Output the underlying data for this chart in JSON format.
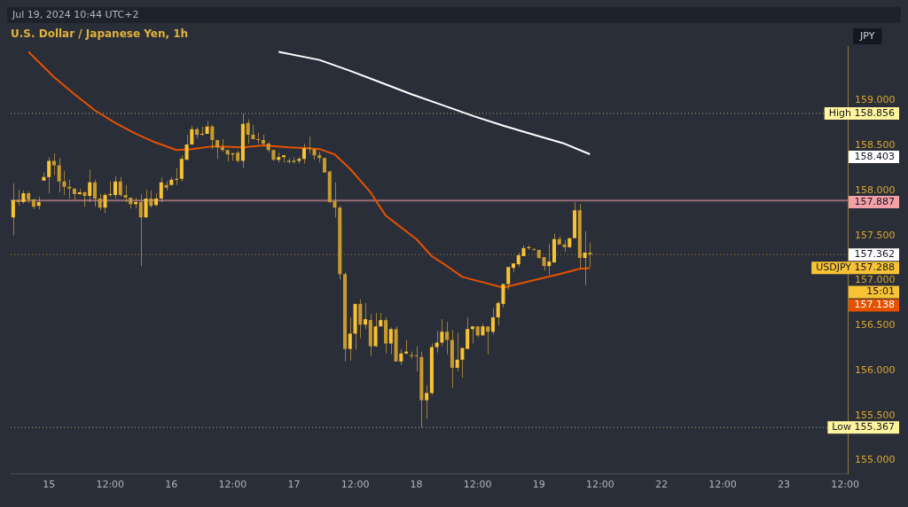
{
  "chart_data": {
    "type": "candlestick",
    "title": "U.S. Dollar / Japanese Yen, 1h",
    "ylabel": "JPY",
    "color": "#f7c234",
    "annotations": [
      "Jul 19, 2024 10:44 UTC+2",
      "158.403",
      "157.362",
      "15:01",
      "157.138"
    ],
    "categories": [
      null,
      null,
      null,
      null,
      null,
      null,
      null,
      "15",
      null,
      null,
      null,
      null,
      null,
      null,
      null,
      null,
      null,
      null,
      null,
      "12:00",
      null,
      null,
      null,
      null,
      null,
      null,
      null,
      null,
      null,
      null,
      null,
      "16",
      null,
      null,
      null,
      null,
      null,
      null,
      null,
      null,
      null,
      null,
      null,
      "12:00",
      null,
      null,
      null,
      null,
      null,
      null,
      null,
      null,
      null,
      null,
      null,
      "17",
      null,
      null,
      null,
      null,
      null,
      null,
      null,
      null,
      null,
      null,
      null,
      "12:00",
      null,
      null,
      null,
      null,
      null,
      null,
      null,
      null,
      null,
      null,
      null,
      "18",
      null,
      null,
      null,
      null,
      null,
      null,
      null,
      null,
      null,
      null,
      null,
      "12:00",
      null,
      null,
      null,
      null,
      null,
      null,
      null,
      null,
      null,
      null,
      null,
      "19",
      null,
      null,
      null,
      null,
      null,
      null,
      null,
      null,
      null,
      null,
      null,
      "12:00",
      null,
      null,
      null,
      null,
      null,
      null,
      null,
      null,
      null,
      null,
      null,
      "22",
      null,
      null,
      null,
      null,
      null,
      null,
      null,
      null,
      null,
      null,
      null,
      "12:00",
      null,
      null,
      null,
      null,
      null,
      null,
      null,
      null,
      null,
      null,
      null,
      "23",
      null,
      null,
      null,
      null,
      null,
      null,
      null,
      null,
      null,
      null,
      null,
      "12:00"
    ],
    "ohlc": [
      [
        157.7,
        158.08,
        157.5,
        157.89
      ],
      [
        157.89,
        158.01,
        157.83,
        157.87
      ],
      [
        157.87,
        158.0,
        157.85,
        157.97
      ],
      [
        157.97,
        157.99,
        157.86,
        157.9
      ],
      [
        157.9,
        157.91,
        157.79,
        157.82
      ],
      [
        157.83,
        157.93,
        157.79,
        157.87
      ],
      [
        158.11,
        158.2,
        158.11,
        158.15
      ],
      [
        158.15,
        158.37,
        157.97,
        158.33
      ],
      [
        158.33,
        158.41,
        158.17,
        158.28
      ],
      [
        158.28,
        158.36,
        157.98,
        158.1
      ],
      [
        158.1,
        158.22,
        157.95,
        158.04
      ],
      [
        158.04,
        158.12,
        157.91,
        158.02
      ],
      [
        158.02,
        158.02,
        157.9,
        157.96
      ],
      [
        157.96,
        158.02,
        157.95,
        157.98
      ],
      [
        157.98,
        157.99,
        157.82,
        157.94
      ],
      [
        157.94,
        158.23,
        157.87,
        158.09
      ],
      [
        158.09,
        158.12,
        157.82,
        157.91
      ],
      [
        157.91,
        157.96,
        157.78,
        157.81
      ],
      [
        157.81,
        157.97,
        157.75,
        157.95
      ],
      [
        157.95,
        158.1,
        157.93,
        157.95
      ],
      [
        157.95,
        158.16,
        157.91,
        158.1
      ],
      [
        158.1,
        158.15,
        157.93,
        157.95
      ],
      [
        157.95,
        158.06,
        157.87,
        157.92
      ],
      [
        157.92,
        157.92,
        157.8,
        157.85
      ],
      [
        157.85,
        157.92,
        157.8,
        157.87
      ],
      [
        157.87,
        157.96,
        157.16,
        157.7
      ],
      [
        157.7,
        158.01,
        157.7,
        157.91
      ],
      [
        157.91,
        158.0,
        157.81,
        157.83
      ],
      [
        157.84,
        157.97,
        157.82,
        157.91
      ],
      [
        157.91,
        158.15,
        157.87,
        158.09
      ],
      [
        158.06,
        158.1,
        158.0,
        158.03
      ],
      [
        158.06,
        158.15,
        158.06,
        158.12
      ],
      [
        158.12,
        158.25,
        158.06,
        158.13
      ],
      [
        158.13,
        158.39,
        158.1,
        158.35
      ],
      [
        158.34,
        158.62,
        158.34,
        158.51
      ],
      [
        158.51,
        158.72,
        158.51,
        158.68
      ],
      [
        158.68,
        158.7,
        158.58,
        158.62
      ],
      [
        158.62,
        158.71,
        158.61,
        158.63
      ],
      [
        158.63,
        158.77,
        158.63,
        158.71
      ],
      [
        158.71,
        158.73,
        158.46,
        158.56
      ],
      [
        158.56,
        158.56,
        158.35,
        158.48
      ],
      [
        158.48,
        158.57,
        158.43,
        158.45
      ],
      [
        158.45,
        158.45,
        158.32,
        158.4
      ],
      [
        158.4,
        158.42,
        158.33,
        158.41
      ],
      [
        158.42,
        158.44,
        158.31,
        158.33
      ],
      [
        158.33,
        158.856,
        158.25,
        158.74
      ],
      [
        158.75,
        158.79,
        158.52,
        158.62
      ],
      [
        158.62,
        158.73,
        158.57,
        158.57
      ],
      [
        158.57,
        158.64,
        158.52,
        158.56
      ],
      [
        158.56,
        158.62,
        158.5,
        158.52
      ],
      [
        158.52,
        158.54,
        158.42,
        158.45
      ],
      [
        158.45,
        158.45,
        158.33,
        158.34
      ],
      [
        158.34,
        158.42,
        158.31,
        158.37
      ],
      [
        158.37,
        158.39,
        158.31,
        158.39
      ],
      [
        158.32,
        158.36,
        158.3,
        158.33
      ],
      [
        158.32,
        158.37,
        158.3,
        158.33
      ],
      [
        158.33,
        158.37,
        158.3,
        158.35
      ],
      [
        158.35,
        158.52,
        158.3,
        158.47
      ],
      [
        158.47,
        158.6,
        158.41,
        158.46
      ],
      [
        158.46,
        158.46,
        158.34,
        158.39
      ],
      [
        158.39,
        158.43,
        158.31,
        158.36
      ],
      [
        158.36,
        158.36,
        158.2,
        158.2
      ],
      [
        158.21,
        158.22,
        157.86,
        157.87
      ],
      [
        157.88,
        158.09,
        157.7,
        157.81
      ],
      [
        157.81,
        157.83,
        157.01,
        157.07
      ],
      [
        157.07,
        157.09,
        156.1,
        156.24
      ],
      [
        156.24,
        156.59,
        156.11,
        156.41
      ],
      [
        156.41,
        156.74,
        156.23,
        156.74
      ],
      [
        156.74,
        156.79,
        156.36,
        156.51
      ],
      [
        156.51,
        156.75,
        156.46,
        156.57
      ],
      [
        156.56,
        156.63,
        156.16,
        156.27
      ],
      [
        156.27,
        156.64,
        156.26,
        156.49
      ],
      [
        156.49,
        156.64,
        156.49,
        156.56
      ],
      [
        156.56,
        156.59,
        156.19,
        156.3
      ],
      [
        156.3,
        156.48,
        156.18,
        156.46
      ],
      [
        156.46,
        156.49,
        156.1,
        156.1
      ],
      [
        156.1,
        156.24,
        156.06,
        156.19
      ],
      [
        156.19,
        156.34,
        156.18,
        156.21
      ],
      [
        156.17,
        156.21,
        156.13,
        156.16
      ],
      [
        156.17,
        156.27,
        155.99,
        156.16
      ],
      [
        156.15,
        156.21,
        155.367,
        155.67
      ],
      [
        155.67,
        155.84,
        155.46,
        155.75
      ],
      [
        155.75,
        156.3,
        155.73,
        156.26
      ],
      [
        156.26,
        156.44,
        156.2,
        156.31
      ],
      [
        156.31,
        156.57,
        156.27,
        156.43
      ],
      [
        156.43,
        156.54,
        156.18,
        156.34
      ],
      [
        156.34,
        156.45,
        155.81,
        156.03
      ],
      [
        156.03,
        156.42,
        155.99,
        156.12
      ],
      [
        156.12,
        156.25,
        155.92,
        156.25
      ],
      [
        156.24,
        156.59,
        156.24,
        156.46
      ],
      [
        156.46,
        156.49,
        156.3,
        156.49
      ],
      [
        156.49,
        156.49,
        156.37,
        156.39
      ],
      [
        156.39,
        156.52,
        156.39,
        156.49
      ],
      [
        156.49,
        156.49,
        156.18,
        156.43
      ],
      [
        156.43,
        156.69,
        156.4,
        156.59
      ],
      [
        156.59,
        156.77,
        156.5,
        156.75
      ],
      [
        156.74,
        156.96,
        156.7,
        156.96
      ],
      [
        156.96,
        157.15,
        156.9,
        157.15
      ],
      [
        157.14,
        157.19,
        157.09,
        157.19
      ],
      [
        157.18,
        157.31,
        157.15,
        157.28
      ],
      [
        157.27,
        157.39,
        157.27,
        157.36
      ],
      [
        157.36,
        157.39,
        157.34,
        157.37
      ],
      [
        157.35,
        157.36,
        157.33,
        157.34
      ],
      [
        157.34,
        157.34,
        157.24,
        157.25
      ],
      [
        157.26,
        157.26,
        157.11,
        157.16
      ],
      [
        157.16,
        157.41,
        157.06,
        157.21
      ],
      [
        157.2,
        157.52,
        157.2,
        157.46
      ],
      [
        157.46,
        157.49,
        157.4,
        157.4
      ],
      [
        157.4,
        157.45,
        157.32,
        157.37
      ],
      [
        157.37,
        157.47,
        157.36,
        157.47
      ],
      [
        157.47,
        157.87,
        157.47,
        157.78
      ],
      [
        157.78,
        157.85,
        157.13,
        157.25
      ],
      [
        157.25,
        157.55,
        156.95,
        157.31
      ],
      [
        157.31,
        157.42,
        157.15,
        157.288
      ],
      null,
      null,
      null,
      null,
      null,
      null,
      null,
      null,
      null,
      null,
      null,
      null,
      null,
      null,
      null,
      null,
      null,
      null,
      null,
      null,
      null,
      null,
      null,
      null,
      null,
      null,
      null,
      null,
      null,
      null,
      null,
      null,
      null,
      null,
      null,
      null,
      null,
      null,
      null,
      null,
      null,
      null,
      null,
      null,
      null,
      null,
      null,
      null,
      null,
      null
    ],
    "colors": [
      "#f7c234",
      "#c99a2e",
      "#f7c234",
      "#c99a2e",
      "#c99a2e",
      "#f7c234",
      "#f7c234",
      "#f7c234",
      "#c99a2e",
      "#c99a2e",
      "#c99a2e",
      "#c99a2e",
      "#c99a2e",
      "#f7c234",
      "#c99a2e",
      "#f7c234",
      "#c99a2e",
      "#c99a2e",
      "#f7c234",
      "#f7c234",
      "#f7c234",
      "#c99a2e",
      "#c99a2e",
      "#c99a2e",
      "#f7c234",
      "#c99a2e",
      "#f7c234",
      "#c99a2e",
      "#f7c234",
      "#f7c234",
      "#c99a2e",
      "#f7c234",
      "#f7c234",
      "#f7c234",
      "#f7c234",
      "#f7c234",
      "#c99a2e",
      "#f7c234",
      "#f7c234",
      "#c99a2e",
      "#c99a2e",
      "#c99a2e",
      "#c99a2e",
      "#f7c234",
      "#c99a2e",
      "#f7c234",
      "#c99a2e",
      "#c99a2e",
      "#c99a2e",
      "#c99a2e",
      "#c99a2e",
      "#c99a2e",
      "#f7c234",
      "#f7c234",
      "#f7c234",
      "#f7c234",
      "#f7c234",
      "#f7c234",
      "#c99a2e",
      "#c99a2e",
      "#c99a2e",
      "#c99a2e",
      "#c99a2e",
      "#c99a2e",
      "#c99a2e",
      "#c99a2e",
      "#f7c234",
      "#f7c234",
      "#c99a2e",
      "#f7c234",
      "#c99a2e",
      "#f7c234",
      "#f7c234",
      "#c99a2e",
      "#f7c234",
      "#c99a2e",
      "#f7c234",
      "#f7c234",
      "#c99a2e",
      "#c99a2e",
      "#c99a2e",
      "#f7c234",
      "#f7c234",
      "#f7c234",
      "#f7c234",
      "#c99a2e",
      "#c99a2e",
      "#f7c234",
      "#f7c234",
      "#f7c234",
      "#f7c234",
      "#c99a2e",
      "#f7c234",
      "#c99a2e",
      "#f7c234",
      "#f7c234",
      "#f7c234",
      "#f7c234",
      "#f7c234",
      "#f7c234",
      "#f7c234",
      "#f7c234",
      "#c99a2e",
      "#c99a2e",
      "#c99a2e",
      "#f7c234",
      "#f7c234",
      "#c99a2e",
      "#c99a2e",
      "#f7c234",
      "#f7c234",
      "#c99a2e",
      "#f7c234",
      "#c99a2e",
      null,
      null,
      null,
      null,
      null,
      null,
      null,
      null,
      null,
      null,
      null,
      null,
      null,
      null,
      null,
      null,
      null,
      null,
      null,
      null,
      null,
      null,
      null,
      null,
      null,
      null,
      null,
      null,
      null,
      null,
      null,
      null,
      null,
      null,
      null,
      null,
      null,
      null,
      null,
      null,
      null,
      null,
      null,
      null,
      null,
      null,
      null,
      null,
      null,
      null
    ],
    "series": [
      {
        "type": "line",
        "color": "#e65100",
        "values": [
          null,
          null,
          null,
          159.54,
          null,
          null,
          null,
          null,
          159.26,
          null,
          null,
          null,
          159.07,
          null,
          null,
          null,
          158.89,
          null,
          null,
          null,
          158.75,
          null,
          null,
          null,
          158.63,
          null,
          null,
          null,
          158.53,
          null,
          null,
          null,
          158.45,
          null,
          null,
          158.46,
          null,
          null,
          null,
          158.49,
          null,
          null,
          null,
          null,
          null,
          158.48,
          null,
          null,
          null,
          158.5,
          null,
          null,
          null,
          null,
          158.48,
          null,
          null,
          null,
          158.47,
          null,
          158.46,
          null,
          null,
          158.4,
          null,
          null,
          158.24,
          null,
          null,
          null,
          157.98,
          null,
          null,
          157.72,
          null,
          null,
          null,
          null,
          null,
          157.46,
          null,
          null,
          157.27,
          null,
          null,
          157.16,
          null,
          null,
          157.04,
          null,
          null,
          null,
          null,
          null,
          null,
          null,
          156.92,
          null,
          null,
          null,
          null,
          156.99,
          null,
          null,
          null,
          null,
          null,
          157.07,
          null,
          null,
          null,
          157.13,
          null,
          157.138,
          null,
          null,
          null,
          null,
          null,
          null,
          null,
          null,
          null,
          null,
          null,
          null,
          null,
          null,
          null,
          null,
          null,
          null,
          null,
          null,
          null,
          null,
          null,
          null,
          null,
          null,
          null,
          null,
          null,
          null,
          null,
          null,
          null,
          null,
          null,
          null,
          null,
          null,
          null,
          null,
          null,
          null,
          null,
          null,
          null,
          null,
          null,
          null,
          null,
          null
        ]
      },
      {
        "type": "line",
        "color": "#ffffff",
        "values": [
          null,
          null,
          null,
          null,
          null,
          null,
          null,
          null,
          null,
          null,
          null,
          null,
          null,
          null,
          null,
          null,
          null,
          null,
          null,
          null,
          null,
          null,
          null,
          null,
          null,
          null,
          null,
          null,
          null,
          null,
          null,
          null,
          null,
          null,
          null,
          null,
          null,
          null,
          null,
          null,
          null,
          null,
          null,
          null,
          null,
          null,
          null,
          null,
          null,
          null,
          null,
          null,
          159.54,
          null,
          null,
          null,
          null,
          null,
          null,
          null,
          159.45,
          null,
          null,
          null,
          null,
          null,
          159.33,
          null,
          null,
          null,
          null,
          null,
          159.2,
          null,
          null,
          null,
          null,
          null,
          159.07,
          null,
          null,
          null,
          null,
          null,
          158.95,
          null,
          null,
          null,
          null,
          null,
          158.83,
          null,
          null,
          null,
          null,
          null,
          158.72,
          null,
          null,
          null,
          null,
          null,
          158.62,
          null,
          null,
          null,
          null,
          null,
          158.52,
          null,
          null,
          null,
          null,
          158.403,
          null,
          null,
          null,
          null,
          null,
          null,
          null,
          null,
          null,
          null,
          null,
          null,
          null,
          null,
          null,
          null,
          null,
          null,
          null,
          null,
          null,
          null,
          null,
          null,
          null,
          null,
          null,
          null,
          null,
          null,
          null,
          null,
          null,
          null,
          null,
          null,
          null,
          null,
          null,
          null,
          null,
          null,
          null,
          null,
          null,
          null,
          null,
          null,
          null,
          null
        ]
      }
    ],
    "ref_lines": [
      {
        "axis": "y",
        "value": 158.856,
        "label": "High 158.856",
        "color": "#fff59d",
        "line_style": "dotted"
      },
      {
        "axis": "y",
        "value": 157.887,
        "label": "157.887",
        "color": "#f4a0a8",
        "line_style": "solid"
      },
      {
        "axis": "y",
        "value": 157.288,
        "label": "USDJPY 157.288",
        "color": "#f7c234",
        "line_style": "dotted"
      },
      {
        "axis": "y",
        "value": 155.367,
        "label": "Low 155.367",
        "color": "#fff59d",
        "line_style": "dotted"
      }
    ],
    "ylim": [
      154.85,
      159.6
    ],
    "yticks": [
      {
        "value": 155,
        "label": "155.000"
      },
      {
        "value": 155.5,
        "label": "155.500"
      },
      {
        "value": 156,
        "label": "156.000"
      },
      {
        "value": 156.5,
        "label": "156.500"
      },
      {
        "value": 157,
        "label": "157.000"
      },
      {
        "value": 157.5,
        "label": "157.500"
      },
      {
        "value": 158,
        "label": "158.000"
      },
      {
        "value": 158.5,
        "label": "158.500"
      },
      {
        "value": 159,
        "label": "159.000"
      }
    ],
    "legend": false
  }
}
